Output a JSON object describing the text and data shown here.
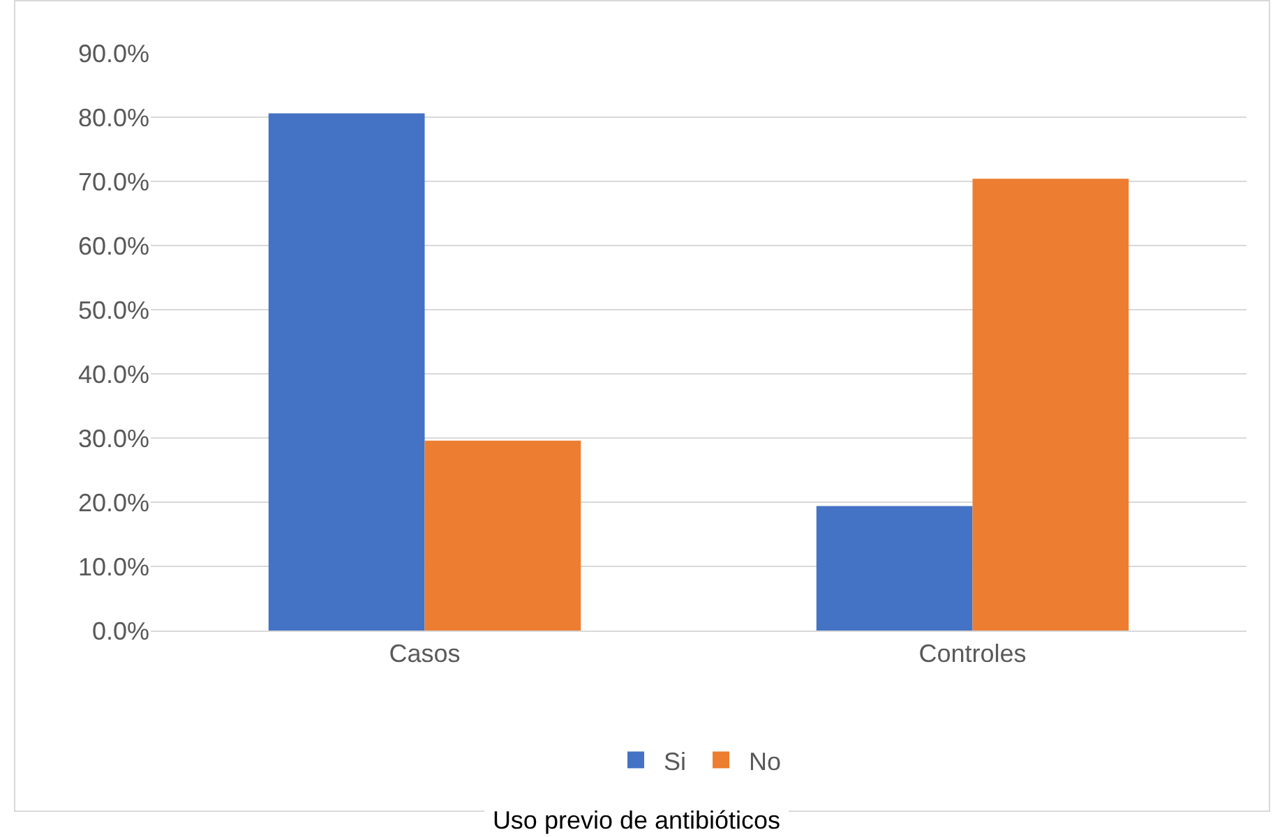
{
  "chart_data": {
    "type": "bar",
    "categories": [
      "Casos",
      "Controles"
    ],
    "series": [
      {
        "name": "Si",
        "color": "#4472c4",
        "values": [
          80.6,
          19.4
        ]
      },
      {
        "name": "No",
        "color": "#ed7d31",
        "values": [
          29.6,
          70.4
        ]
      }
    ],
    "ylim": [
      0,
      90
    ],
    "yticks": [
      {
        "value": 0,
        "label": "0.0%"
      },
      {
        "value": 10,
        "label": "10.0%"
      },
      {
        "value": 20,
        "label": "20.0%"
      },
      {
        "value": 30,
        "label": "30.0%"
      },
      {
        "value": 40,
        "label": "40.0%"
      },
      {
        "value": 50,
        "label": "50.0%"
      },
      {
        "value": 60,
        "label": "60.0%"
      },
      {
        "value": 70,
        "label": "70.0%"
      },
      {
        "value": 80,
        "label": "80.0%"
      },
      {
        "value": 90,
        "label": "90.0%"
      }
    ],
    "grid": "y",
    "legend": "bottom",
    "annotations": [
      "Uso previo de antibióticos"
    ]
  }
}
